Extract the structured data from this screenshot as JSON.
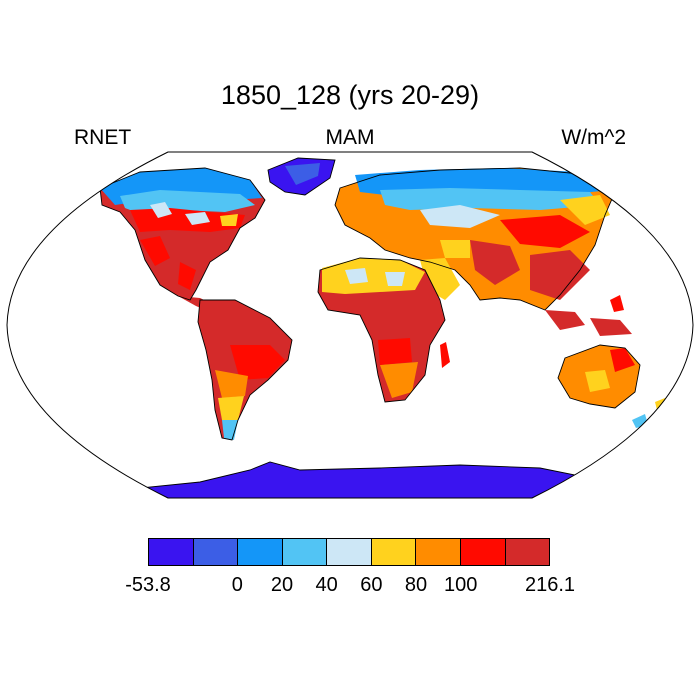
{
  "header": {
    "title": "1850_128 (yrs 20-29)",
    "left_label": "RNET",
    "center_label": "MAM",
    "right_label": "W/m^2"
  },
  "colorbar": {
    "colors": [
      "#3a14f0",
      "#3c5ee6",
      "#1496f8",
      "#52c4f4",
      "#cde7f6",
      "#ffd21e",
      "#ff8c00",
      "#ff0a00",
      "#d42a2a"
    ],
    "labels": [
      "-53.8",
      "0",
      "20",
      "40",
      "60",
      "80",
      "100",
      "216.1"
    ],
    "label_boundary_index": [
      0,
      2,
      3,
      4,
      5,
      6,
      7,
      9
    ]
  },
  "legend_colors": {
    "ocean": "#ffffff",
    "outline": "#000000"
  }
}
